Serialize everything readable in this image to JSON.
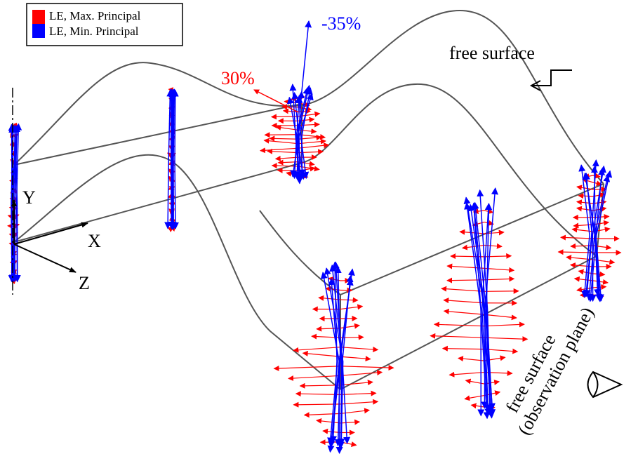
{
  "legend": [
    {
      "label": "LE, Max. Principal",
      "color": "#ff0000"
    },
    {
      "label": "LE, Min. Principal",
      "color": "#0000ff"
    }
  ],
  "annotations": {
    "min_label": "-35%",
    "max_label": "30%",
    "free_surface": "free surface",
    "observation_plane": [
      "free surface",
      "(observation plane)"
    ]
  },
  "axes": {
    "y": "Y",
    "x": "X",
    "z": "Z"
  }
}
